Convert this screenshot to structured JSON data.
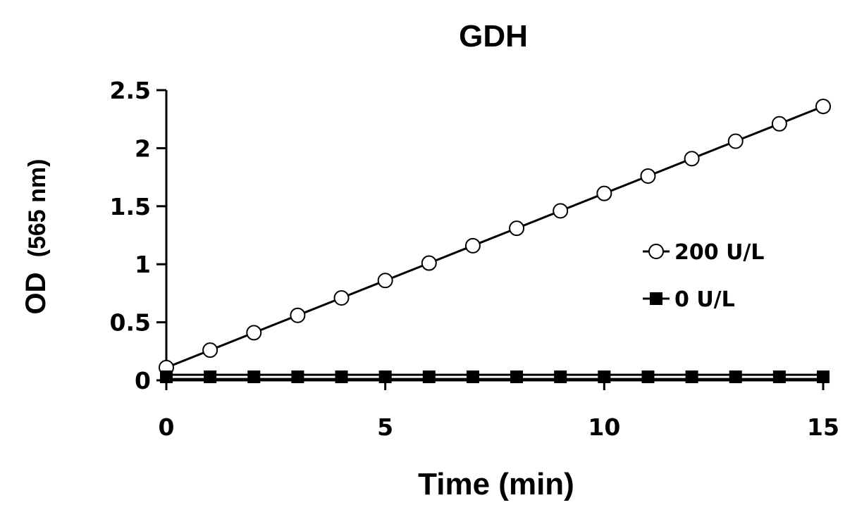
{
  "chart_data": {
    "type": "line",
    "title": "GDH",
    "xlabel": "Time (min)",
    "ylabel": "OD",
    "ylabel_unit": "(565 nm)",
    "xlim": [
      0,
      15
    ],
    "ylim": [
      0,
      2.5
    ],
    "x_ticks": [
      "0",
      "5",
      "10",
      "15"
    ],
    "y_ticks": [
      "0",
      "0.5",
      "1",
      "1.5",
      "2",
      "2.5"
    ],
    "grid": false,
    "legend_position": "right",
    "x": [
      0,
      1,
      2,
      3,
      4,
      5,
      6,
      7,
      8,
      9,
      10,
      11,
      12,
      13,
      14,
      15
    ],
    "series": [
      {
        "name": "200 U/L",
        "marker": "open-circle",
        "values": [
          0.11,
          0.26,
          0.41,
          0.56,
          0.71,
          0.86,
          1.01,
          1.16,
          1.31,
          1.46,
          1.61,
          1.76,
          1.91,
          2.06,
          2.21,
          2.36
        ]
      },
      {
        "name": "0 U/L",
        "marker": "filled-square",
        "values": [
          0.03,
          0.03,
          0.03,
          0.03,
          0.03,
          0.03,
          0.03,
          0.03,
          0.03,
          0.03,
          0.03,
          0.03,
          0.03,
          0.03,
          0.03,
          0.03
        ]
      }
    ],
    "colors": {
      "line": "#000000",
      "marker_fill_open": "#ffffff",
      "marker_fill_solid": "#000000"
    }
  }
}
